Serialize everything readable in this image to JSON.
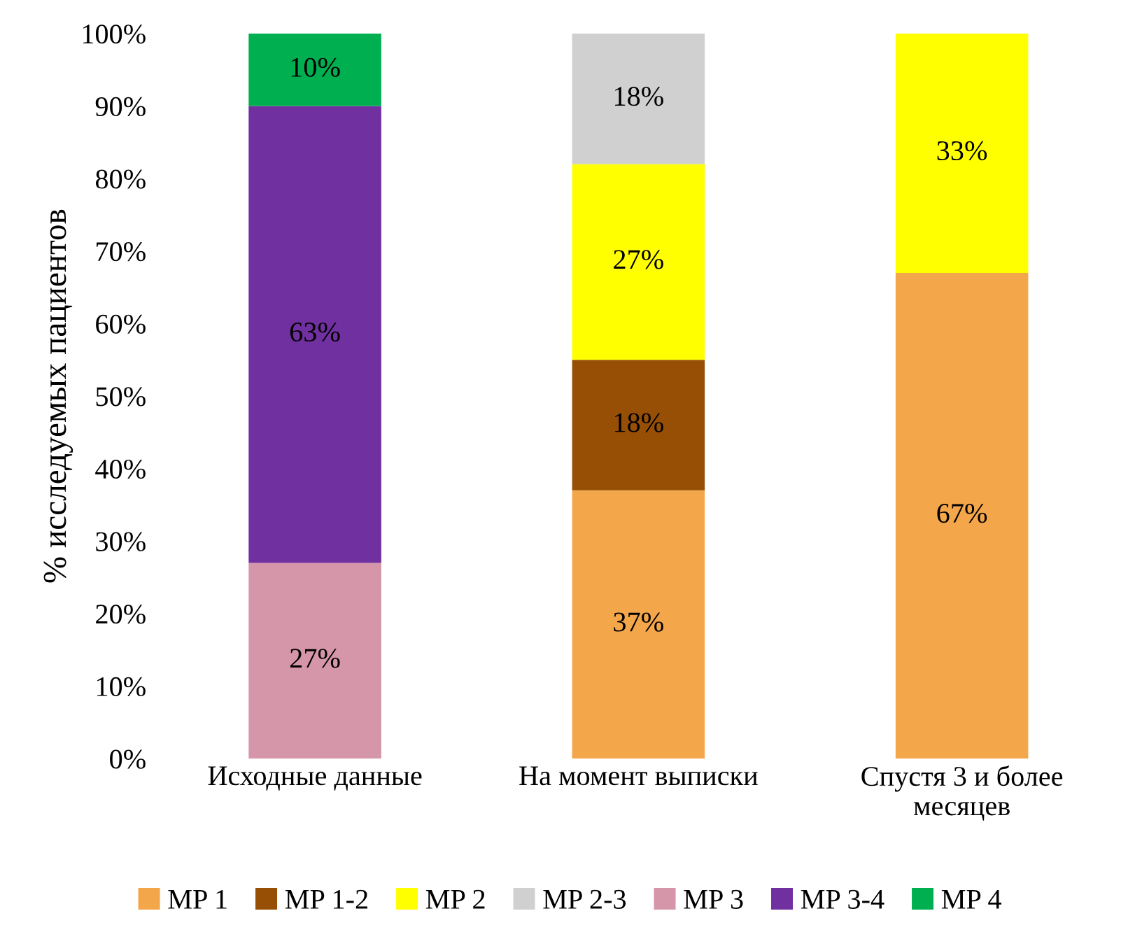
{
  "chart_data": {
    "type": "bar",
    "stacked": true,
    "ylabel": "% исследуемых пациентов",
    "categories": [
      "Исходные данные",
      "На момент выписки",
      "Спустя 3 и более месяцев"
    ],
    "ylim": [
      0,
      100
    ],
    "yticks": [
      {
        "value": 0,
        "label": "0%"
      },
      {
        "value": 10,
        "label": "10%"
      },
      {
        "value": 20,
        "label": "20%"
      },
      {
        "value": 30,
        "label": "30%"
      },
      {
        "value": 40,
        "label": "40%"
      },
      {
        "value": 50,
        "label": "50%"
      },
      {
        "value": 60,
        "label": "60%"
      },
      {
        "value": 70,
        "label": "70%"
      },
      {
        "value": 80,
        "label": "80%"
      },
      {
        "value": 90,
        "label": "90%"
      },
      {
        "value": 100,
        "label": "100%"
      }
    ],
    "grid": false,
    "legend": "bottom",
    "series": [
      {
        "name": "MP 1",
        "color": "#f4a64a",
        "values": [
          null,
          37,
          67
        ],
        "value_labels": [
          null,
          "37%",
          "67%"
        ]
      },
      {
        "name": "MP 1-2",
        "color": "#974f06",
        "values": [
          null,
          18,
          null
        ],
        "value_labels": [
          null,
          "18%",
          null
        ]
      },
      {
        "name": "MP 2",
        "color": "#ffff00",
        "values": [
          null,
          27,
          33
        ],
        "value_labels": [
          null,
          "27%",
          "33%"
        ]
      },
      {
        "name": "MP 2-3",
        "color": "#d0d0d0",
        "values": [
          null,
          18,
          null
        ],
        "value_labels": [
          null,
          "18%",
          null
        ]
      },
      {
        "name": "MP 3",
        "color": "#d496a8",
        "values": [
          27,
          null,
          null
        ],
        "value_labels": [
          "27%",
          null,
          null
        ]
      },
      {
        "name": "MP 3-4",
        "color": "#7030a0",
        "values": [
          63,
          null,
          null
        ],
        "value_labels": [
          "63%",
          null,
          null
        ]
      },
      {
        "name": "MP 4",
        "color": "#00b050",
        "values": [
          10,
          null,
          null
        ],
        "value_labels": [
          "10%",
          null,
          null
        ]
      }
    ]
  }
}
